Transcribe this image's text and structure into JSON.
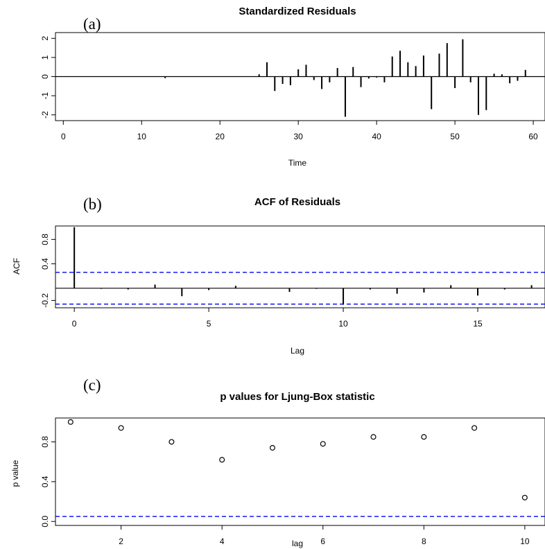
{
  "chart_data": [
    {
      "type": "bar",
      "panel_letter": "(a)",
      "title": "Standardized Residuals",
      "xlabel": "Time",
      "ylabel": "",
      "xlim": [
        -1,
        61.5
      ],
      "ylim": [
        -2.3,
        2.3
      ],
      "xticks": [
        0,
        10,
        20,
        30,
        40,
        50,
        60
      ],
      "yticks": [
        -2,
        -1,
        0,
        1,
        2
      ],
      "zero_line": true,
      "x": [
        13,
        25,
        26,
        27,
        28,
        29,
        30,
        31,
        32,
        33,
        34,
        35,
        36,
        37,
        38,
        39,
        40,
        41,
        42,
        43,
        44,
        45,
        46,
        47,
        48,
        49,
        50,
        51,
        52,
        53,
        54,
        55,
        56,
        57,
        58,
        59
      ],
      "values": [
        -0.08,
        0.12,
        0.75,
        -0.75,
        -0.38,
        -0.45,
        0.38,
        0.62,
        -0.18,
        -0.65,
        -0.3,
        0.45,
        -2.1,
        0.5,
        -0.55,
        -0.1,
        -0.05,
        -0.3,
        1.05,
        1.35,
        0.75,
        0.55,
        1.1,
        -1.7,
        1.2,
        1.75,
        -0.6,
        1.95,
        -0.3,
        -2.0,
        -1.75,
        0.15,
        0.12,
        -0.35,
        -0.22,
        0.35
      ],
      "colors": {
        "mark": "#000000"
      }
    },
    {
      "type": "bar",
      "panel_letter": "(b)",
      "title": "ACF of Residuals",
      "xlabel": "Lag",
      "ylabel": "ACF",
      "xlim": [
        -0.7,
        17.5
      ],
      "ylim": [
        -0.32,
        1.02
      ],
      "xticks": [
        0,
        5,
        10,
        15
      ],
      "yticks": [
        -0.2,
        0.4,
        0.8
      ],
      "ytick_labels": [
        "-0.2",
        "0.4",
        "0.8"
      ],
      "zero_line": true,
      "x": [
        0,
        1,
        2,
        3,
        4,
        5,
        6,
        7,
        8,
        9,
        10,
        11,
        12,
        13,
        14,
        15,
        16,
        17
      ],
      "values": [
        1.0,
        -0.01,
        -0.02,
        0.06,
        -0.13,
        -0.03,
        0.04,
        0.0,
        -0.06,
        -0.01,
        -0.27,
        -0.02,
        -0.09,
        -0.07,
        0.05,
        -0.12,
        -0.02,
        0.05
      ],
      "confidence_band": [
        -0.26,
        0.26
      ],
      "colors": {
        "mark": "#000000",
        "band": "#0000ee"
      }
    },
    {
      "type": "scatter",
      "panel_letter": "(c)",
      "title": "p values for Ljung-Box statistic",
      "xlabel": "lag",
      "ylabel": "p value",
      "xlim": [
        0.7,
        10.4
      ],
      "ylim": [
        -0.04,
        1.04
      ],
      "xticks": [
        2,
        4,
        6,
        8,
        10
      ],
      "yticks": [
        0.0,
        0.4,
        0.8
      ],
      "ytick_labels": [
        "0.0",
        "0.4",
        "0.8"
      ],
      "x": [
        1,
        2,
        3,
        4,
        5,
        6,
        7,
        8,
        9,
        10
      ],
      "values": [
        1.0,
        0.94,
        0.8,
        0.62,
        0.74,
        0.78,
        0.85,
        0.85,
        0.94,
        0.24
      ],
      "reference_line": 0.05,
      "colors": {
        "mark": "#000000",
        "band": "#0000ee"
      }
    }
  ]
}
